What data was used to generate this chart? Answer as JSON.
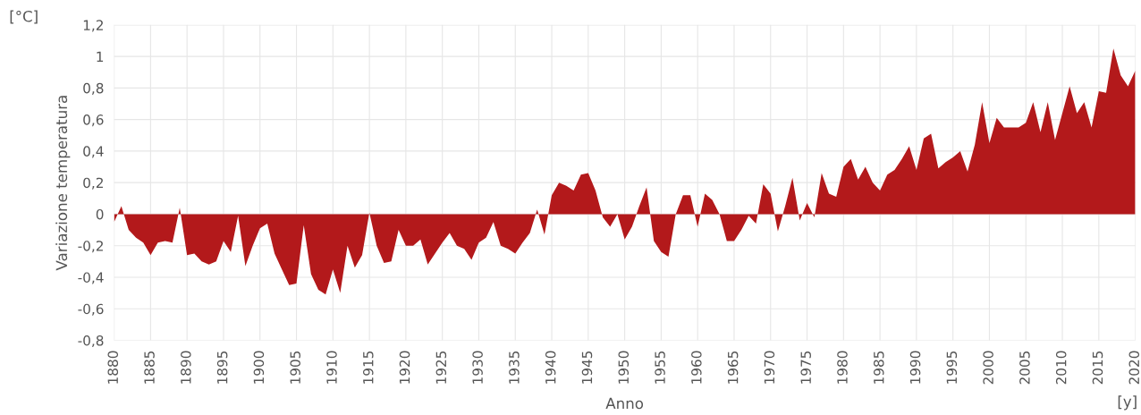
{
  "chart_data": {
    "type": "area",
    "xlabel": "Anno",
    "ylabel": "Variazione temperatura",
    "annotations": [
      "[°C]",
      "[y]"
    ],
    "x": [
      1880,
      1881,
      1882,
      1883,
      1884,
      1885,
      1886,
      1887,
      1888,
      1889,
      1890,
      1891,
      1892,
      1893,
      1894,
      1895,
      1896,
      1897,
      1898,
      1899,
      1900,
      1901,
      1902,
      1903,
      1904,
      1905,
      1906,
      1907,
      1908,
      1909,
      1910,
      1911,
      1912,
      1913,
      1914,
      1915,
      1916,
      1917,
      1918,
      1919,
      1920,
      1921,
      1922,
      1923,
      1924,
      1925,
      1926,
      1927,
      1928,
      1929,
      1930,
      1931,
      1932,
      1933,
      1934,
      1935,
      1936,
      1937,
      1938,
      1939,
      1940,
      1941,
      1942,
      1943,
      1944,
      1945,
      1946,
      1947,
      1948,
      1949,
      1950,
      1951,
      1952,
      1953,
      1954,
      1955,
      1956,
      1957,
      1958,
      1959,
      1960,
      1961,
      1962,
      1963,
      1964,
      1965,
      1966,
      1967,
      1968,
      1969,
      1970,
      1971,
      1972,
      1973,
      1974,
      1975,
      1976,
      1977,
      1978,
      1979,
      1980,
      1981,
      1982,
      1983,
      1984,
      1985,
      1986,
      1987,
      1988,
      1989,
      1990,
      1991,
      1992,
      1993,
      1994,
      1995,
      1996,
      1997,
      1998,
      1999,
      2000,
      2001,
      2002,
      2003,
      2004,
      2005,
      2006,
      2007,
      2008,
      2009,
      2010,
      2011,
      2012,
      2013,
      2014,
      2015,
      2016,
      2017,
      2018,
      2019,
      2020
    ],
    "series": [
      {
        "color": "#b3191b",
        "values": [
          -0.05,
          0.05,
          -0.1,
          -0.15,
          -0.18,
          -0.26,
          -0.18,
          -0.17,
          -0.18,
          0.04,
          -0.26,
          -0.25,
          -0.3,
          -0.32,
          -0.3,
          -0.17,
          -0.24,
          -0.01,
          -0.33,
          -0.2,
          -0.09,
          -0.06,
          -0.25,
          -0.35,
          -0.45,
          -0.44,
          -0.07,
          -0.38,
          -0.48,
          -0.51,
          -0.35,
          -0.5,
          -0.2,
          -0.34,
          -0.26,
          0.01,
          -0.2,
          -0.31,
          -0.3,
          -0.1,
          -0.2,
          -0.2,
          -0.16,
          -0.32,
          -0.25,
          -0.18,
          -0.12,
          -0.2,
          -0.22,
          -0.29,
          -0.18,
          -0.15,
          -0.05,
          -0.2,
          -0.22,
          -0.25,
          -0.18,
          -0.12,
          0.03,
          -0.13,
          0.12,
          0.2,
          0.18,
          0.15,
          0.25,
          0.26,
          0.15,
          -0.02,
          -0.08,
          0.0,
          -0.16,
          -0.08,
          0.05,
          0.17,
          -0.17,
          -0.24,
          -0.27,
          0.0,
          0.12,
          0.12,
          -0.08,
          0.13,
          0.09,
          0.0,
          -0.17,
          -0.17,
          -0.1,
          -0.01,
          -0.06,
          0.19,
          0.13,
          -0.11,
          0.05,
          0.23,
          -0.04,
          0.07,
          -0.02,
          0.26,
          0.13,
          0.11,
          0.3,
          0.35,
          0.22,
          0.3,
          0.2,
          0.15,
          0.25,
          0.28,
          0.35,
          0.43,
          0.28,
          0.48,
          0.51,
          0.29,
          0.33,
          0.36,
          0.4,
          0.27,
          0.44,
          0.71,
          0.45,
          0.61,
          0.55,
          0.55,
          0.55,
          0.58,
          0.71,
          0.52,
          0.71,
          0.47,
          0.64,
          0.81,
          0.64,
          0.71,
          0.55,
          0.78,
          0.77,
          1.05,
          0.88,
          0.81,
          0.91
        ]
      }
    ],
    "xlim": [
      1880,
      2020
    ],
    "xticks": [
      1880,
      1885,
      1890,
      1895,
      1900,
      1905,
      1910,
      1915,
      1920,
      1925,
      1930,
      1935,
      1940,
      1945,
      1950,
      1955,
      1960,
      1965,
      1970,
      1975,
      1980,
      1985,
      1990,
      1995,
      2000,
      2005,
      2010,
      2015,
      2020
    ],
    "ylim": [
      -0.8,
      1.2
    ],
    "yticks": [
      {
        "value": -0.8,
        "label": "-0,8"
      },
      {
        "value": -0.6,
        "label": "-0,6"
      },
      {
        "value": -0.4,
        "label": "-0,4"
      },
      {
        "value": -0.2,
        "label": "-0,2"
      },
      {
        "value": 0,
        "label": "0"
      },
      {
        "value": 0.2,
        "label": "0,2"
      },
      {
        "value": 0.4,
        "label": "0,4"
      },
      {
        "value": 0.6,
        "label": "0,6"
      },
      {
        "value": 0.8,
        "label": "0,8"
      },
      {
        "value": 1,
        "label": "1"
      },
      {
        "value": 1.2,
        "label": "1,2"
      }
    ],
    "grid": true
  }
}
